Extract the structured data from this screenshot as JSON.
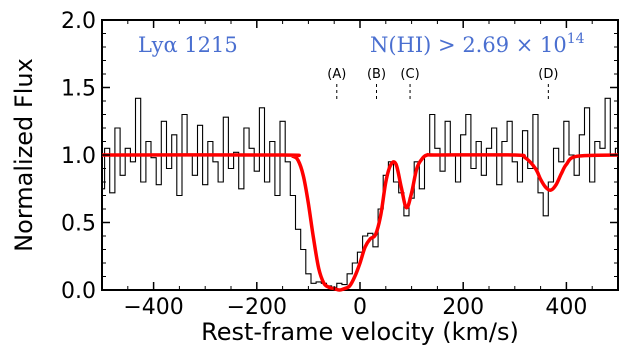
{
  "chart_data": {
    "type": "line",
    "xlabel": "Rest-frame velocity (km/s)",
    "ylabel": "Normalized Flux",
    "xlim": [
      -500,
      500
    ],
    "ylim": [
      0.0,
      2.0
    ],
    "x_ticks": [
      -400,
      -200,
      0,
      200,
      400
    ],
    "x_tick_labels": [
      "−400",
      "−200",
      "0",
      "200",
      "400"
    ],
    "y_ticks": [
      0.0,
      0.5,
      1.0,
      1.5,
      2.0
    ],
    "y_tick_labels": [
      "0.0",
      "0.5",
      "1.0",
      "1.5",
      "2.0"
    ],
    "grid": false,
    "annotations": {
      "line_name": "Lyα 1215",
      "column_density": "N(HI) > 2.69 × 10",
      "column_density_exp": "14",
      "color": "#4a6fd0"
    },
    "components": [
      {
        "label": "(A)",
        "velocity": -45
      },
      {
        "label": "(B)",
        "velocity": 32
      },
      {
        "label": "(C)",
        "velocity": 97
      },
      {
        "label": "(D)",
        "velocity": 365
      }
    ],
    "series": [
      {
        "role": "data",
        "style": "steps",
        "color": "#000000",
        "x": [
          -500,
          -490,
          -480,
          -470,
          -460,
          -450,
          -440,
          -430,
          -420,
          -410,
          -400,
          -390,
          -380,
          -370,
          -360,
          -350,
          -340,
          -330,
          -320,
          -310,
          -300,
          -290,
          -280,
          -270,
          -260,
          -250,
          -240,
          -230,
          -220,
          -210,
          -200,
          -190,
          -180,
          -170,
          -160,
          -150,
          -140,
          -130,
          -120,
          -110,
          -100,
          -90,
          -80,
          -70,
          -60,
          -50,
          -40,
          -30,
          -20,
          -10,
          0,
          10,
          20,
          30,
          40,
          50,
          60,
          70,
          80,
          90,
          100,
          110,
          120,
          130,
          140,
          150,
          160,
          170,
          180,
          190,
          200,
          210,
          220,
          230,
          240,
          250,
          260,
          270,
          280,
          290,
          300,
          310,
          320,
          330,
          340,
          350,
          360,
          370,
          380,
          390,
          400,
          410,
          420,
          430,
          440,
          450,
          460,
          470,
          480,
          490,
          500
        ],
        "values": [
          0.75,
          1.05,
          0.72,
          1.2,
          0.85,
          1.05,
          0.95,
          1.42,
          0.8,
          1.1,
          0.98,
          0.78,
          1.25,
          0.9,
          1.15,
          0.7,
          1.3,
          1.0,
          0.85,
          1.22,
          0.78,
          1.1,
          0.95,
          0.8,
          1.28,
          0.9,
          1.02,
          0.75,
          1.2,
          1.05,
          0.88,
          1.35,
          0.8,
          1.1,
          0.7,
          1.25,
          0.95,
          0.7,
          0.45,
          0.3,
          0.12,
          0.05,
          0.06,
          0.05,
          0.03,
          0.02,
          0.05,
          0.04,
          0.12,
          0.2,
          0.28,
          0.4,
          0.42,
          0.32,
          0.6,
          0.85,
          0.95,
          0.8,
          0.72,
          0.55,
          0.68,
          0.95,
          0.75,
          1.0,
          1.3,
          1.05,
          0.88,
          1.25,
          1.0,
          0.8,
          1.15,
          1.3,
          0.9,
          1.1,
          0.85,
          1.05,
          1.2,
          0.78,
          1.1,
          1.25,
          0.95,
          0.8,
          1.18,
          0.9,
          1.3,
          0.72,
          0.55,
          0.8,
          1.05,
          0.95,
          1.25,
          1.0,
          0.85,
          1.15,
          1.35,
          0.8,
          1.1,
          1.05,
          1.42,
          1.0,
          1.05
        ]
      },
      {
        "role": "model",
        "style": "smooth",
        "color": "#ff0000",
        "x": [
          -500,
          -150,
          -130,
          -120,
          -110,
          -100,
          -90,
          -80,
          -70,
          -60,
          -50,
          -40,
          -30,
          -20,
          -10,
          0,
          10,
          20,
          30,
          40,
          50,
          60,
          70,
          80,
          90,
          100,
          110,
          120,
          130,
          150,
          300,
          320,
          340,
          350,
          360,
          370,
          380,
          390,
          400,
          420,
          500
        ],
        "values": [
          1.0,
          1.0,
          0.99,
          0.96,
          0.85,
          0.64,
          0.38,
          0.16,
          0.05,
          0.02,
          0.01,
          0.0,
          0.01,
          0.03,
          0.1,
          0.2,
          0.32,
          0.38,
          0.41,
          0.55,
          0.8,
          0.93,
          0.93,
          0.76,
          0.61,
          0.72,
          0.9,
          0.97,
          1.0,
          1.0,
          1.0,
          0.98,
          0.9,
          0.82,
          0.76,
          0.74,
          0.78,
          0.86,
          0.93,
          0.99,
          1.0
        ]
      }
    ]
  }
}
